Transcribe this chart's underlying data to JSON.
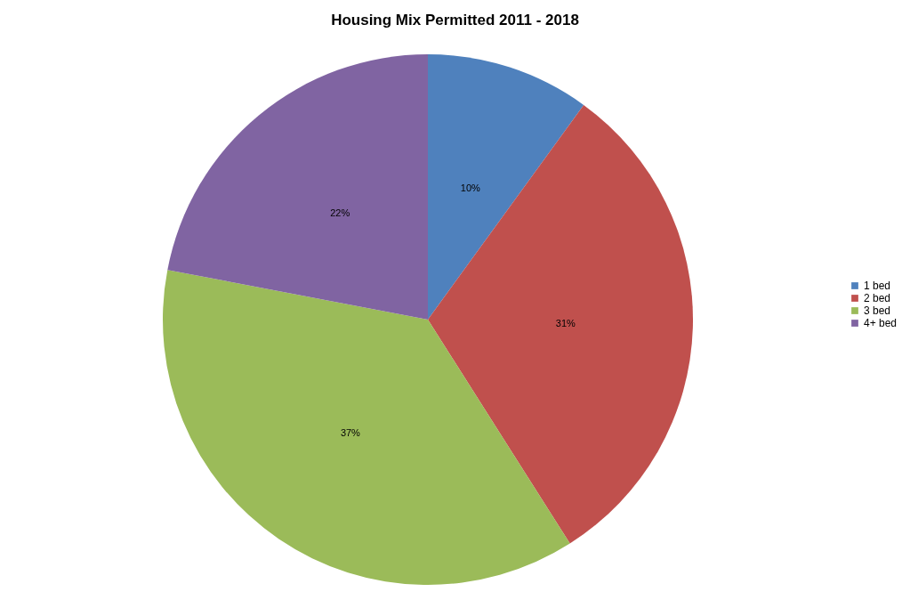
{
  "chart_data": {
    "type": "pie",
    "title": "Housing Mix Permitted 2011 - 2018",
    "categories": [
      "1 bed",
      "2 bed",
      "3 bed",
      "4+ bed"
    ],
    "values": [
      10,
      31,
      37,
      22
    ],
    "value_labels": [
      "10%",
      "31%",
      "37%",
      "22%"
    ],
    "colors": [
      "#4f81bd",
      "#c0504d",
      "#9bbb59",
      "#8064a2"
    ],
    "legend": "right"
  }
}
